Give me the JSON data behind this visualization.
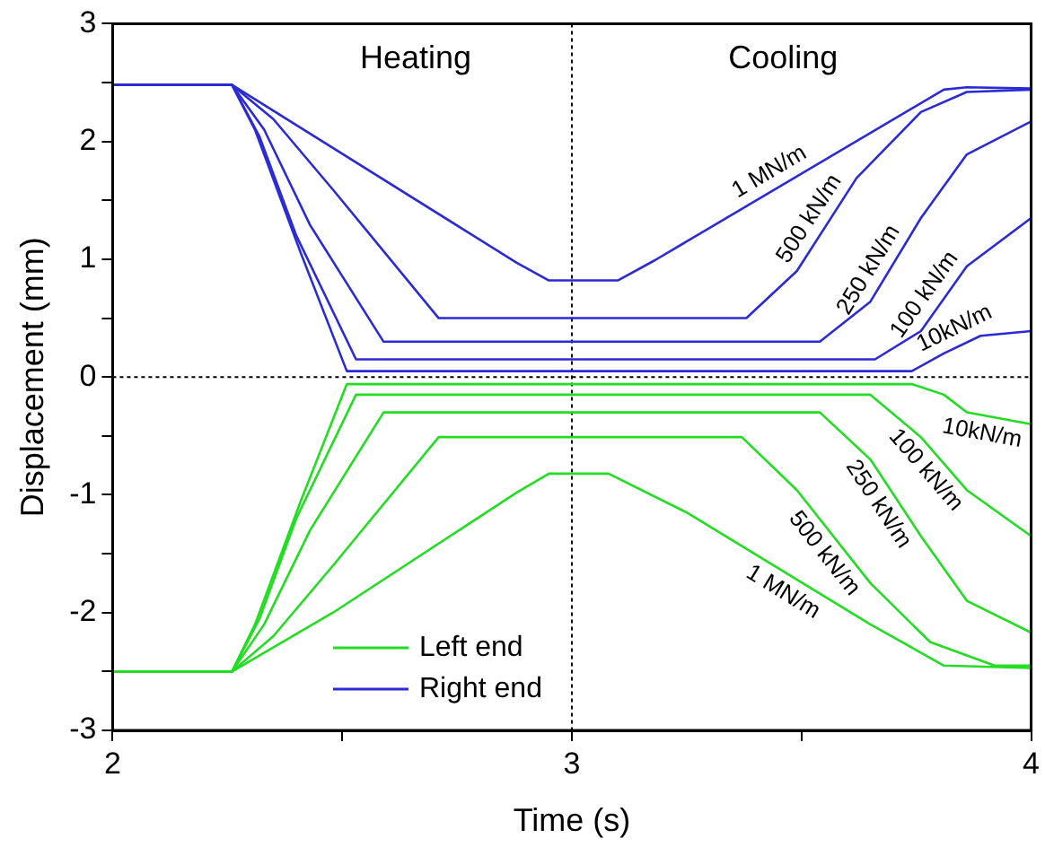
{
  "chart_data": {
    "type": "line",
    "xlabel": "Time (s)",
    "ylabel": "Displacement (mm)",
    "xlim": [
      2,
      4
    ],
    "xticks": [
      2,
      {
        "value": 2.5,
        "label": null
      },
      3,
      {
        "value": 3.5,
        "label": null
      },
      4
    ],
    "ylim": [
      -3,
      3
    ],
    "yticks": [
      -3,
      {
        "value": -2.5,
        "label": null
      },
      -2,
      {
        "value": -1.5,
        "label": null
      },
      -1,
      {
        "value": -0.5,
        "label": null
      },
      0,
      {
        "value": 0.5,
        "label": null
      },
      1,
      {
        "value": 1.5,
        "label": null
      },
      2,
      {
        "value": 2.5,
        "label": null
      },
      3
    ],
    "grid": false,
    "legend": "bottom left",
    "marker": "none",
    "line_style": "solid",
    "series": [
      {
        "name": "Left end",
        "color": "#22dd22",
        "x": [
          2,
          2.26,
          2.31,
          2.41,
          2.51,
          3.74,
          3.81,
          3.86,
          4
        ],
        "values": [
          -2.5,
          -2.5,
          -2.1,
          -1.05,
          -0.06,
          -0.06,
          -0.15,
          -0.3,
          -0.4
        ]
      },
      {
        "color": "#22dd22",
        "x": [
          2,
          2.26,
          2.32,
          2.4,
          2.53,
          3.65,
          3.76,
          3.86,
          4
        ],
        "values": [
          -2.5,
          -2.5,
          -2.05,
          -1.2,
          -0.15,
          -0.15,
          -0.51,
          -0.96,
          -1.35
        ]
      },
      {
        "color": "#22dd22",
        "x": [
          2,
          2.26,
          2.33,
          2.43,
          2.59,
          3.54,
          3.65,
          3.76,
          3.86,
          4
        ],
        "values": [
          -2.5,
          -2.5,
          -2.1,
          -1.3,
          -0.3,
          -0.3,
          -0.7,
          -1.35,
          -1.9,
          -2.17
        ]
      },
      {
        "color": "#22dd22",
        "x": [
          2,
          2.26,
          2.35,
          2.48,
          2.71,
          3.37,
          3.49,
          3.65,
          3.78,
          3.92,
          4
        ],
        "values": [
          -2.5,
          -2.5,
          -2.2,
          -1.6,
          -0.51,
          -0.51,
          -0.96,
          -1.75,
          -2.25,
          -2.45,
          -2.45
        ]
      },
      {
        "color": "#22dd22",
        "x": [
          2,
          2.26,
          2.48,
          2.88,
          2.95,
          3.08,
          3.25,
          3.65,
          3.81,
          4
        ],
        "values": [
          -2.5,
          -2.5,
          -2,
          -0.98,
          -0.82,
          -0.82,
          -1.15,
          -2.1,
          -2.45,
          -2.47
        ]
      },
      {
        "name": "Right end",
        "color": "#2b2bd6",
        "x": [
          2,
          2.26,
          2.31,
          2.41,
          2.51,
          3.74,
          3.81,
          3.89,
          4
        ],
        "values": [
          2.48,
          2.48,
          2.1,
          1.05,
          0.05,
          0.05,
          0.2,
          0.35,
          0.39
        ]
      },
      {
        "color": "#2b2bd6",
        "x": [
          2,
          2.26,
          2.32,
          2.4,
          2.53,
          3.66,
          3.76,
          3.86,
          4
        ],
        "values": [
          2.48,
          2.48,
          2.04,
          1.2,
          0.15,
          0.15,
          0.39,
          0.94,
          1.35
        ]
      },
      {
        "color": "#2b2bd6",
        "x": [
          2,
          2.26,
          2.33,
          2.43,
          2.59,
          3.54,
          3.65,
          3.76,
          3.86,
          4
        ],
        "values": [
          2.48,
          2.48,
          2.1,
          1.29,
          0.3,
          0.3,
          0.64,
          1.35,
          1.89,
          2.17
        ]
      },
      {
        "color": "#2b2bd6",
        "x": [
          2,
          2.26,
          2.35,
          2.48,
          2.71,
          3.38,
          3.49,
          3.62,
          3.76,
          3.86,
          4
        ],
        "values": [
          2.48,
          2.48,
          2.19,
          1.59,
          0.5,
          0.5,
          0.9,
          1.69,
          2.25,
          2.42,
          2.44
        ]
      },
      {
        "color": "#2b2bd6",
        "x": [
          2,
          2.26,
          2.88,
          2.95,
          3.1,
          3.18,
          3.81,
          3.86,
          4
        ],
        "values": [
          2.48,
          2.48,
          0.97,
          0.82,
          0.82,
          0.99,
          2.44,
          2.46,
          2.45
        ]
      }
    ],
    "ref_lines": [
      {
        "axis": "y",
        "value": 0,
        "line_style": "dotted",
        "color": "#000000"
      },
      {
        "axis": "x",
        "value": 3,
        "line_style": "dotted",
        "color": "#000000"
      }
    ],
    "annotations": [
      "Heating",
      "Cooling",
      {
        "text": "1 MN/m",
        "x": 3.45,
        "y": 1.61
      },
      {
        "text": "500 kN/m",
        "x": 3.55,
        "y": 1.26
      },
      {
        "text": "250 kN/m",
        "x": 3.68,
        "y": 0.83
      },
      {
        "text": "100 kN/m",
        "x": 3.8,
        "y": 0.61
      },
      {
        "text": "10kN/m",
        "x": 3.85,
        "y": 0.275
      },
      {
        "text": "10kN/m",
        "x": 3.9,
        "y": -0.329
      },
      {
        "text": "100 kN/m",
        "x": 3.8,
        "y": -0.69
      },
      {
        "text": "250 kN/m",
        "x": 3.7,
        "y": -0.995
      },
      {
        "text": "500 kN/m",
        "x": 3.58,
        "y": -1.404
      },
      {
        "text": "1 MN/m",
        "x": 3.48,
        "y": -1.696
      }
    ]
  }
}
